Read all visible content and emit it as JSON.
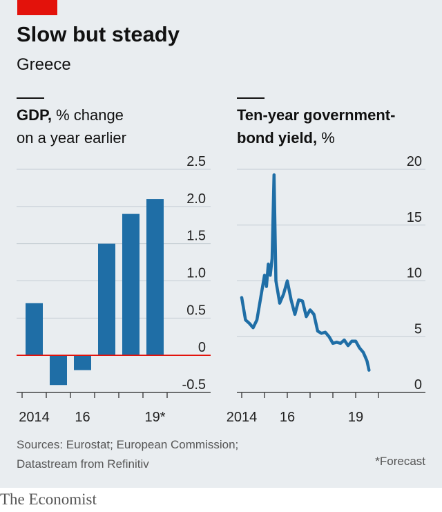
{
  "title": "Slow but steady",
  "subtitle": "Greece",
  "colors": {
    "bar": "#1f6ea6",
    "line": "#1f6ea6",
    "zero_line": "#e3120b",
    "grid": "#c3ccd3",
    "accent": "#e3120b"
  },
  "gdp": {
    "heading_bold": "GDP,",
    "heading_rest": " % change",
    "heading_line2": "on a year earlier"
  },
  "bond": {
    "heading_line1": "Ten-year government-",
    "heading_bold": "bond yield,",
    "heading_rest": " %"
  },
  "source": "Sources: Eurostat; European Commission;",
  "source_line2": "Datastream from Refinitiv",
  "footnote": "*Forecast",
  "brand": "The Economist",
  "chart_data": [
    {
      "type": "bar",
      "categories": [
        "2014",
        "2015",
        "2016",
        "2017",
        "2018",
        "2019*"
      ],
      "values": [
        0.7,
        -0.4,
        -0.2,
        1.5,
        1.9,
        2.1
      ],
      "x_tick_labels": [
        "2014",
        "16",
        "19*"
      ],
      "y_ticks": [
        "2.5",
        "2.0",
        "1.5",
        "1.0",
        "0.5",
        "0",
        "-0.5"
      ],
      "ylim": [
        -0.5,
        2.5
      ],
      "grid": true
    },
    {
      "type": "line",
      "x": [
        "2014-01",
        "2014-03",
        "2014-05",
        "2014-07",
        "2014-09",
        "2014-11",
        "2015-01",
        "2015-02",
        "2015-03",
        "2015-04",
        "2015-05",
        "2015-06",
        "2015-07",
        "2015-08",
        "2015-09",
        "2015-11",
        "2016-01",
        "2016-03",
        "2016-05",
        "2016-07",
        "2016-09",
        "2016-11",
        "2017-01",
        "2017-03",
        "2017-05",
        "2017-07",
        "2017-09",
        "2017-11",
        "2018-01",
        "2018-03",
        "2018-05",
        "2018-07",
        "2018-09",
        "2018-11",
        "2019-01",
        "2019-03",
        "2019-05",
        "2019-06",
        "2019-07",
        "2019-08"
      ],
      "values": [
        8.5,
        6.5,
        6.2,
        5.8,
        6.5,
        8.5,
        10.5,
        9.5,
        11.5,
        10.5,
        12.0,
        19.5,
        10.0,
        9.0,
        8.0,
        8.8,
        10.0,
        8.3,
        7.0,
        8.3,
        8.2,
        6.8,
        7.4,
        7.0,
        5.5,
        5.3,
        5.4,
        5.0,
        4.4,
        4.5,
        4.4,
        4.7,
        4.2,
        4.6,
        4.6,
        4.0,
        3.6,
        3.2,
        2.8,
        2.0
      ],
      "x_tick_labels": [
        "2014",
        "16",
        "19"
      ],
      "y_ticks": [
        "20",
        "15",
        "10",
        "5",
        "0"
      ],
      "ylim": [
        0,
        20
      ],
      "grid": true
    }
  ]
}
